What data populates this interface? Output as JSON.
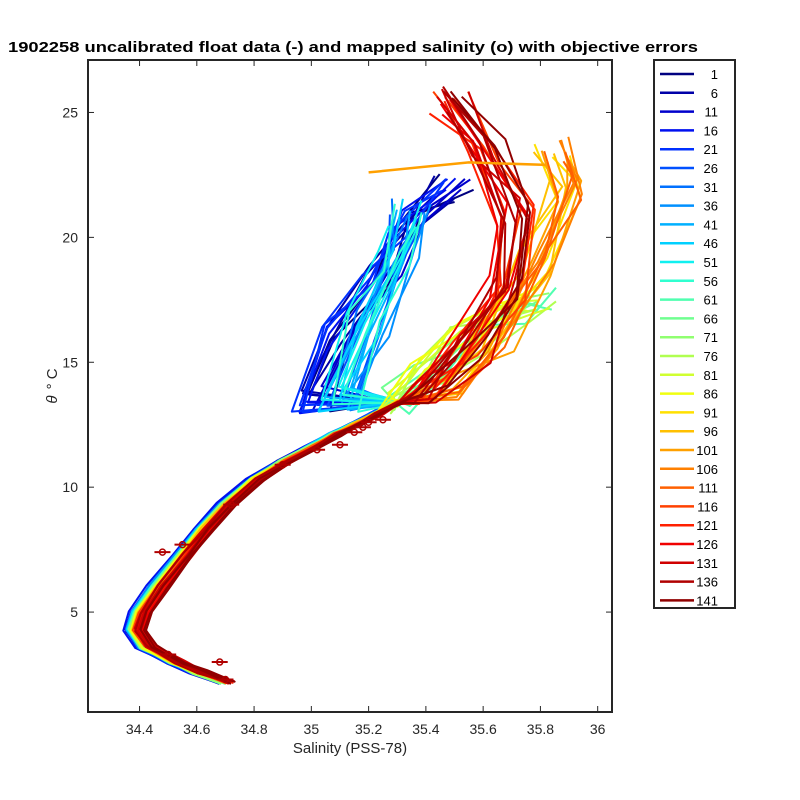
{
  "chart_data": {
    "type": "line",
    "title": "1902258 uncalibrated float data (-) and mapped salinity (o) with objective errors",
    "xlabel": "Salinity (PSS-78)",
    "ylabel_symbol": "θ",
    "ylabel_unit": "° C",
    "xlim": [
      34.22,
      36.05
    ],
    "ylim": [
      1.0,
      27.1
    ],
    "xticks": [
      "34.4",
      "34.6",
      "34.8",
      "35",
      "35.2",
      "35.4",
      "35.6",
      "35.8",
      "36"
    ],
    "yticks": [
      "5",
      "10",
      "15",
      "20",
      "25"
    ],
    "xtick_values": [
      34.4,
      34.6,
      34.8,
      35.0,
      35.2,
      35.4,
      35.6,
      35.8,
      36.0
    ],
    "ytick_values": [
      5,
      10,
      15,
      20,
      25
    ],
    "grid": false,
    "legend_placement": "outside-right",
    "colormap": "jet",
    "legend_entries": [
      "1",
      "6",
      "11",
      "16",
      "21",
      "26",
      "31",
      "36",
      "41",
      "46",
      "51",
      "56",
      "61",
      "66",
      "71",
      "76",
      "81",
      "86",
      "91",
      "96",
      "101",
      "106",
      "111",
      "116",
      "121",
      "126",
      "131",
      "136",
      "141"
    ],
    "legend_colors": [
      "#000080",
      "#0000a8",
      "#0000cc",
      "#0010f0",
      "#0030ff",
      "#0050ff",
      "#0070ff",
      "#0090ff",
      "#00b0ff",
      "#00d0ff",
      "#10f0f0",
      "#30ffd0",
      "#50ffb0",
      "#70ff90",
      "#90ff70",
      "#b0ff50",
      "#d0ff30",
      "#f0ff10",
      "#ffe000",
      "#ffc000",
      "#ffa000",
      "#ff8000",
      "#ff6000",
      "#ff4000",
      "#ff2000",
      "#f00000",
      "#d00000",
      "#b00000",
      "#900000"
    ],
    "deep_curve": {
      "salinity": [
        34.7,
        34.6,
        34.52,
        34.42,
        34.38,
        34.4,
        34.46,
        34.55,
        34.62,
        34.7,
        34.8,
        34.9,
        35.0,
        35.08,
        35.15,
        35.22,
        35.3
      ],
      "theta": [
        2.2,
        2.6,
        3.0,
        3.6,
        4.3,
        5.0,
        6.0,
        7.3,
        8.3,
        9.3,
        10.3,
        11.0,
        11.6,
        12.1,
        12.5,
        12.9,
        13.4
      ]
    },
    "series_groups": [
      {
        "profiles": "1-21",
        "upper_salinity": [
          35.0,
          35.1,
          35.25,
          35.35,
          35.5
        ],
        "upper_theta": [
          13.5,
          16,
          18.5,
          20.5,
          22
        ]
      },
      {
        "profiles": "41-66",
        "upper_salinity": [
          35.1,
          35.2,
          35.3,
          35.35
        ],
        "upper_theta": [
          13.5,
          16.5,
          19,
          21
        ]
      },
      {
        "profiles": "71-86",
        "upper_salinity": [
          35.3,
          35.4,
          35.55,
          35.7,
          35.8
        ],
        "upper_theta": [
          13.5,
          14.5,
          16,
          17,
          17.5
        ]
      },
      {
        "profiles": "91-116",
        "upper_salinity": [
          35.5,
          35.65,
          35.8,
          35.9,
          35.85
        ],
        "upper_theta": [
          14,
          16,
          19,
          22,
          23.5
        ]
      },
      {
        "profiles": "121-141",
        "upper_salinity": [
          35.4,
          35.55,
          35.68,
          35.72,
          35.6,
          35.48
        ],
        "upper_theta": [
          13.8,
          15.5,
          18,
          21,
          23.5,
          25.5
        ]
      }
    ],
    "outlier_profile": {
      "salinity": [
        35.2,
        35.55,
        35.82
      ],
      "theta": [
        22.6,
        23.0,
        22.9
      ]
    },
    "mapped_points_salinity": [
      34.7,
      34.68,
      34.5,
      34.48,
      34.55,
      34.72,
      34.9,
      35.02,
      35.1,
      35.15,
      35.2,
      35.25,
      35.18
    ],
    "mapped_points_theta": [
      2.3,
      3.0,
      3.3,
      7.4,
      7.7,
      9.3,
      10.9,
      11.5,
      11.7,
      12.2,
      12.6,
      12.7,
      12.4
    ]
  }
}
